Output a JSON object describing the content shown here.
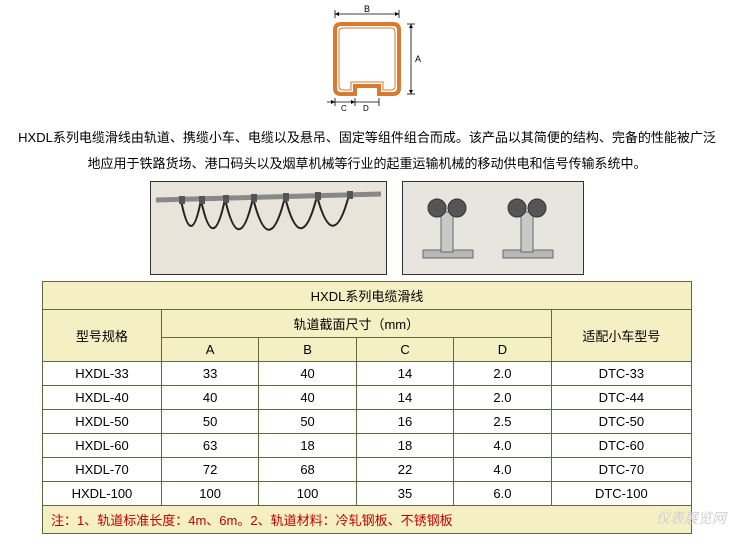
{
  "diagram": {
    "label_top": "B",
    "label_right": "A",
    "label_bottom_left": "C",
    "label_gap": "D",
    "profile_color": "#d97a2e",
    "profile_stroke": "#333333",
    "dim_line_color": "#000000"
  },
  "description": "HXDL系列电缆滑线由轨道、携缆小车、电缆以及悬吊、固定等组件组合而成。该产品以其简便的结构、完备的性能被广泛地应用于铁路货场、港口码头以及烟草机械等行业的起重运输机械的移动供电和信号传输系统中。",
  "table": {
    "title": "HXDL系列电缆滑线",
    "col_model": "型号规格",
    "col_section": "轨道截面尺寸（mm）",
    "col_cart": "适配小车型号",
    "sub_cols": [
      "A",
      "B",
      "C",
      "D"
    ],
    "rows": [
      {
        "model": "HXDL-33",
        "a": "33",
        "b": "40",
        "c": "14",
        "d": "2.0",
        "cart": "DTC-33"
      },
      {
        "model": "HXDL-40",
        "a": "40",
        "b": "40",
        "c": "14",
        "d": "2.0",
        "cart": "DTC-44"
      },
      {
        "model": "HXDL-50",
        "a": "50",
        "b": "50",
        "c": "16",
        "d": "2.5",
        "cart": "DTC-50"
      },
      {
        "model": "HXDL-60",
        "a": "63",
        "b": "18",
        "c": "18",
        "d": "4.0",
        "cart": "DTC-60"
      },
      {
        "model": "HXDL-70",
        "a": "72",
        "b": "68",
        "c": "22",
        "d": "4.0",
        "cart": "DTC-70"
      },
      {
        "model": "HXDL-100",
        "a": "100",
        "b": "100",
        "c": "35",
        "d": "6.0",
        "cart": "DTC-100"
      }
    ],
    "note": "注：1、轨道标准长度：4m、6m。2、轨道材料：冷轧钢板、不锈钢板"
  },
  "watermark": "仪表展览网"
}
